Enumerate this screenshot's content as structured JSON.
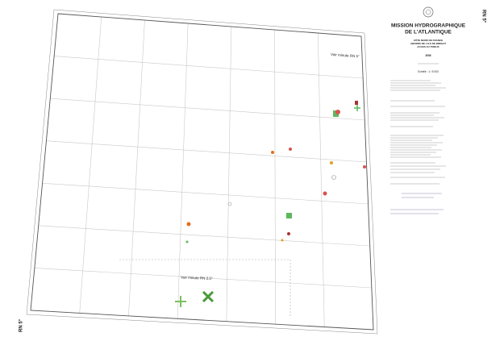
{
  "map": {
    "corner_labels": {
      "top_right": "RN 5°",
      "bottom_left": "RN 5°"
    },
    "title_block": {
      "title_lines": [
        "MISSION HYDROGRAPHIQUE",
        "DE L'ATLANTIQUE"
      ],
      "subtitle_lines": [
        "CÔTE NORD DE FRANCE",
        "ABORDS DE L'ILE DE BREHAT",
        "ACCES AU TRIEUX"
      ],
      "year": "2006",
      "scale": "Echelle : 1 / 5 000"
    },
    "annotations": [
      "Voir minute RN 5°",
      "Voir minute RN 2.5°"
    ]
  }
}
